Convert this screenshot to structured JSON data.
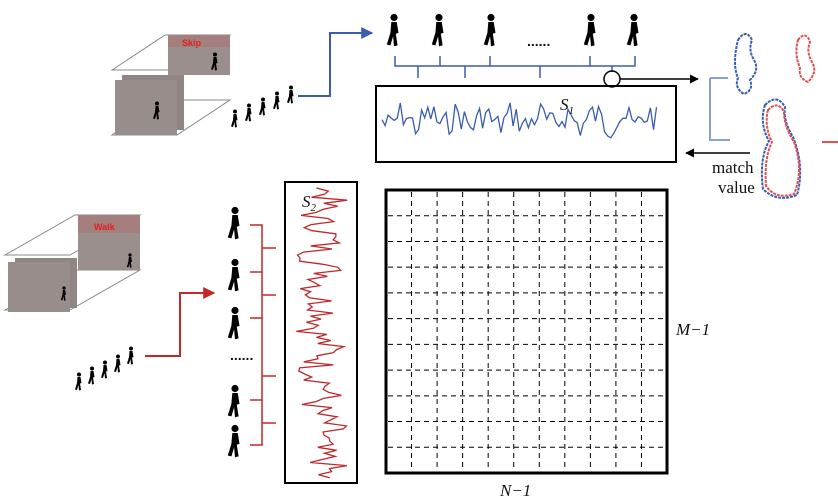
{
  "top_sequence": {
    "video_label": "Skip",
    "ellipsis": "......"
  },
  "bottom_sequence": {
    "video_label": "Walk",
    "ellipsis": "......"
  },
  "signal_1": {
    "name": "S",
    "index": "1"
  },
  "signal_2": {
    "name": "S",
    "index": "2"
  },
  "match_label": "match value",
  "matrix": {
    "row_label": "M−1",
    "column_label": "N−1"
  }
}
